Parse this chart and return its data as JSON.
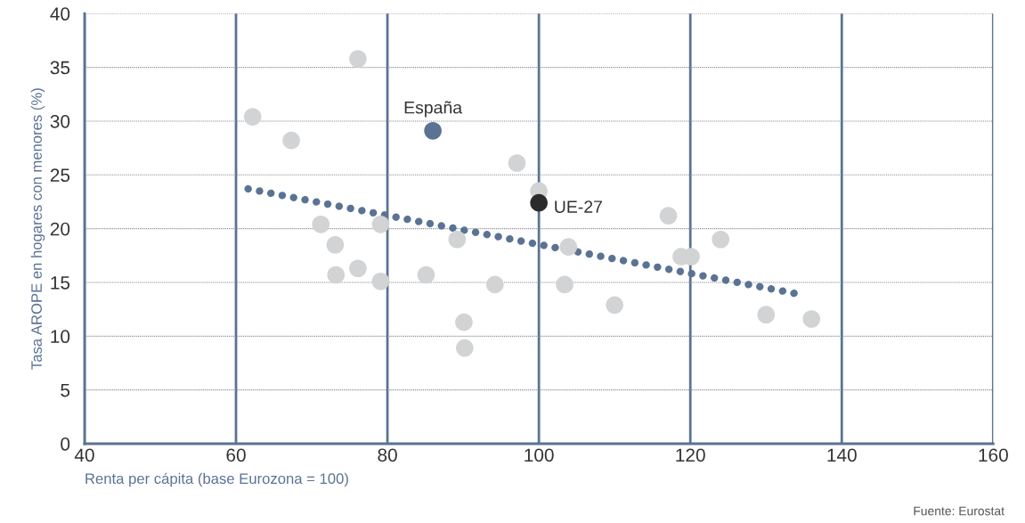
{
  "chart_data": {
    "type": "scatter",
    "xlabel": "Renta per cápita (base Eurozona = 100)",
    "ylabel": "Tasa AROPE en hogares con menores (%)",
    "xlim": [
      40,
      160
    ],
    "xticks": [
      40,
      60,
      80,
      100,
      120,
      140,
      160
    ],
    "ylim": [
      0,
      40
    ],
    "yticks": [
      0,
      5,
      10,
      15,
      20,
      25,
      30,
      35,
      40
    ],
    "grid": true,
    "marker": "circle",
    "legend": false,
    "annotations": [
      "Fuente: Eurostat"
    ],
    "series": [
      {
        "color": "#d1d3d4",
        "x": [
          62.2,
          76.1,
          67.3,
          97.1,
          100,
          71.2,
          79.1,
          89.2,
          73.1,
          76.1,
          73.2,
          79.1,
          85.1,
          94.2,
          103.9,
          103.4,
          90.1,
          90.2,
          117.1,
          118.8,
          120.1,
          124.0,
          110.0,
          130.0,
          136.0
        ],
        "values": [
          30.4,
          35.8,
          28.2,
          26.1,
          23.5,
          20.4,
          20.4,
          19.0,
          18.5,
          16.3,
          15.7,
          15.1,
          15.7,
          14.8,
          18.3,
          14.8,
          11.3,
          8.9,
          21.2,
          17.4,
          17.4,
          19.0,
          12.9,
          12.0,
          11.6
        ]
      },
      {
        "name": "España",
        "color": "#5a7394",
        "x": [
          86.0
        ],
        "values": [
          29.1
        ]
      },
      {
        "name": "UE-27",
        "color": "#2b2b2b",
        "x": [
          100
        ],
        "values": [
          22.4
        ]
      },
      {
        "type": "line",
        "line_style": "dotted",
        "marker": "none",
        "color": "#5a7394",
        "x": [
          61.6,
          134.4
        ],
        "values": [
          23.7,
          13.9
        ]
      }
    ]
  }
}
